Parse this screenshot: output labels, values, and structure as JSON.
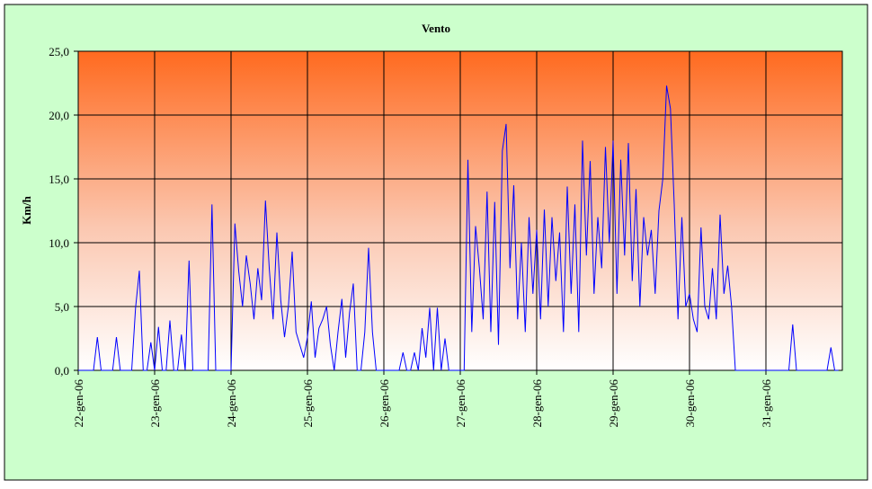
{
  "chart_data": {
    "type": "line",
    "title": "Vento",
    "y_label": "Km/h",
    "xlim": [
      0,
      10
    ],
    "ylim": [
      0,
      25
    ],
    "xticks": [
      {
        "value": 0,
        "label": "22-gen-06"
      },
      {
        "value": 1,
        "label": "23-gen-06"
      },
      {
        "value": 2,
        "label": "24-gen-06"
      },
      {
        "value": 3,
        "label": "25-gen-06"
      },
      {
        "value": 4,
        "label": "26-gen-06"
      },
      {
        "value": 5,
        "label": "27-gen-06"
      },
      {
        "value": 6,
        "label": "28-gen-06"
      },
      {
        "value": 7,
        "label": "29-gen-06"
      },
      {
        "value": 8,
        "label": "30-gen-06"
      },
      {
        "value": 9,
        "label": "31-gen-06"
      }
    ],
    "yticks": [
      {
        "value": 0,
        "label": "0,0"
      },
      {
        "value": 5,
        "label": "5,0"
      },
      {
        "value": 10,
        "label": "10,0"
      },
      {
        "value": 15,
        "label": "15,0"
      },
      {
        "value": 20,
        "label": "20,0"
      },
      {
        "value": 25,
        "label": "25,0"
      }
    ],
    "grid": true,
    "series": [
      {
        "name": "Vento",
        "color": "#0000ff",
        "x": [
          0,
          0.05,
          0.1,
          0.15,
          0.2,
          0.25,
          0.3,
          0.35,
          0.4,
          0.45,
          0.5,
          0.55,
          0.6,
          0.65,
          0.7,
          0.75,
          0.8,
          0.85,
          0.9,
          0.95,
          1,
          1.05,
          1.1,
          1.15,
          1.2,
          1.25,
          1.3,
          1.35,
          1.4,
          1.45,
          1.5,
          1.55,
          1.6,
          1.65,
          1.7,
          1.75,
          1.8,
          1.85,
          1.9,
          1.95,
          2,
          2.05,
          2.1,
          2.15,
          2.2,
          2.25,
          2.3,
          2.35,
          2.4,
          2.45,
          2.5,
          2.55,
          2.6,
          2.65,
          2.7,
          2.75,
          2.8,
          2.85,
          2.9,
          2.95,
          3,
          3.05,
          3.1,
          3.15,
          3.2,
          3.25,
          3.3,
          3.35,
          3.4,
          3.45,
          3.5,
          3.55,
          3.6,
          3.65,
          3.7,
          3.75,
          3.8,
          3.85,
          3.9,
          3.95,
          4,
          4.05,
          4.1,
          4.15,
          4.2,
          4.25,
          4.3,
          4.35,
          4.4,
          4.45,
          4.5,
          4.55,
          4.6,
          4.65,
          4.7,
          4.75,
          4.8,
          4.85,
          4.9,
          4.95,
          5,
          5.05,
          5.1,
          5.15,
          5.2,
          5.25,
          5.3,
          5.35,
          5.4,
          5.45,
          5.5,
          5.55,
          5.6,
          5.65,
          5.7,
          5.75,
          5.8,
          5.85,
          5.9,
          5.95,
          6,
          6.05,
          6.1,
          6.15,
          6.2,
          6.25,
          6.3,
          6.35,
          6.4,
          6.45,
          6.5,
          6.55,
          6.6,
          6.65,
          6.7,
          6.75,
          6.8,
          6.85,
          6.9,
          6.95,
          7,
          7.05,
          7.1,
          7.15,
          7.2,
          7.25,
          7.3,
          7.35,
          7.4,
          7.45,
          7.5,
          7.55,
          7.6,
          7.65,
          7.7,
          7.75,
          7.8,
          7.85,
          7.9,
          7.95,
          8,
          8.05,
          8.1,
          8.15,
          8.2,
          8.25,
          8.3,
          8.35,
          8.4,
          8.45,
          8.5,
          8.55,
          8.6,
          8.65,
          8.7,
          8.75,
          8.8,
          8.85,
          8.9,
          8.95,
          9,
          9.05,
          9.1,
          9.15,
          9.2,
          9.25,
          9.3,
          9.35,
          9.4,
          9.45,
          9.5,
          9.55,
          9.6,
          9.65,
          9.7,
          9.75,
          9.8,
          9.85,
          9.9,
          9.95
        ],
        "values": [
          0,
          0,
          0,
          0,
          0,
          2.6,
          0,
          0,
          0,
          0,
          2.6,
          0,
          0,
          0,
          0,
          4.9,
          7.8,
          0,
          0,
          2.2,
          0,
          3.4,
          0,
          0,
          3.9,
          0,
          0,
          2.8,
          0,
          8.6,
          0,
          0,
          0,
          0,
          0,
          13,
          0,
          0,
          0,
          0,
          0,
          11.5,
          7.8,
          5,
          9,
          6.8,
          4,
          8,
          5.5,
          13.3,
          8,
          4,
          10.8,
          5.5,
          2.6,
          5,
          9.3,
          3,
          2,
          1,
          2.6,
          5.4,
          1,
          3.3,
          4,
          5,
          2,
          0,
          3,
          5.6,
          1,
          4.5,
          6.8,
          0,
          0,
          3,
          9.6,
          3,
          0,
          0,
          0,
          0,
          0,
          0,
          0,
          1.4,
          0,
          0,
          1.4,
          0,
          3.3,
          1,
          4.9,
          0,
          4.9,
          0,
          2.5,
          0,
          0,
          0,
          0,
          0,
          16.5,
          3,
          11.3,
          8,
          4,
          14,
          3,
          13.2,
          2,
          17.2,
          19.3,
          8,
          14.5,
          4,
          10,
          3,
          12,
          6,
          11,
          4,
          12.6,
          5,
          12,
          7,
          10.8,
          3,
          14.4,
          6,
          13,
          3,
          18,
          9,
          16.4,
          6,
          12,
          8,
          17.5,
          10,
          18,
          6,
          16.5,
          9,
          17.8,
          7,
          14.2,
          5,
          12,
          9,
          11,
          6,
          12.5,
          15,
          22.3,
          20.5,
          13,
          4,
          12,
          5,
          6,
          4,
          3,
          11.2,
          5,
          4,
          8,
          4,
          12.2,
          6,
          8.2,
          5,
          0,
          0,
          0,
          0,
          0,
          0,
          0,
          0,
          0,
          0,
          0,
          0,
          0,
          0,
          0,
          3.6,
          0,
          0,
          0,
          0,
          0,
          0,
          0,
          0,
          0,
          1.8,
          0,
          0
        ]
      }
    ]
  }
}
